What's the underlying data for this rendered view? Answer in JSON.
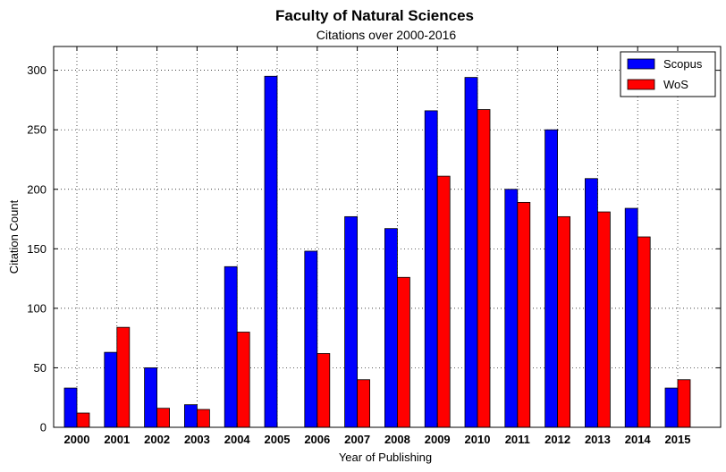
{
  "chart_data": {
    "type": "bar",
    "title": "Faculty of Natural Sciences",
    "subtitle": "Citations over 2000-2016",
    "xlabel": "Year of Publishing",
    "ylabel": "Citation Count",
    "ylim": [
      0,
      320
    ],
    "yticks": [
      0,
      50,
      100,
      150,
      200,
      250,
      300
    ],
    "grid": true,
    "legend_position": "top-right",
    "categories": [
      "2000",
      "2001",
      "2002",
      "2003",
      "2004",
      "2005",
      "2006",
      "2007",
      "2008",
      "2009",
      "2010",
      "2011",
      "2012",
      "2013",
      "2014",
      "2015"
    ],
    "series": [
      {
        "name": "Scopus",
        "color": "#0000ff",
        "values": [
          33,
          63,
          50,
          19,
          135,
          295,
          148,
          177,
          167,
          266,
          294,
          200,
          250,
          209,
          184,
          33
        ]
      },
      {
        "name": "WoS",
        "color": "#ff0000",
        "values": [
          12,
          84,
          16,
          15,
          80,
          0,
          62,
          40,
          126,
          211,
          267,
          189,
          177,
          181,
          160,
          40
        ]
      }
    ]
  }
}
